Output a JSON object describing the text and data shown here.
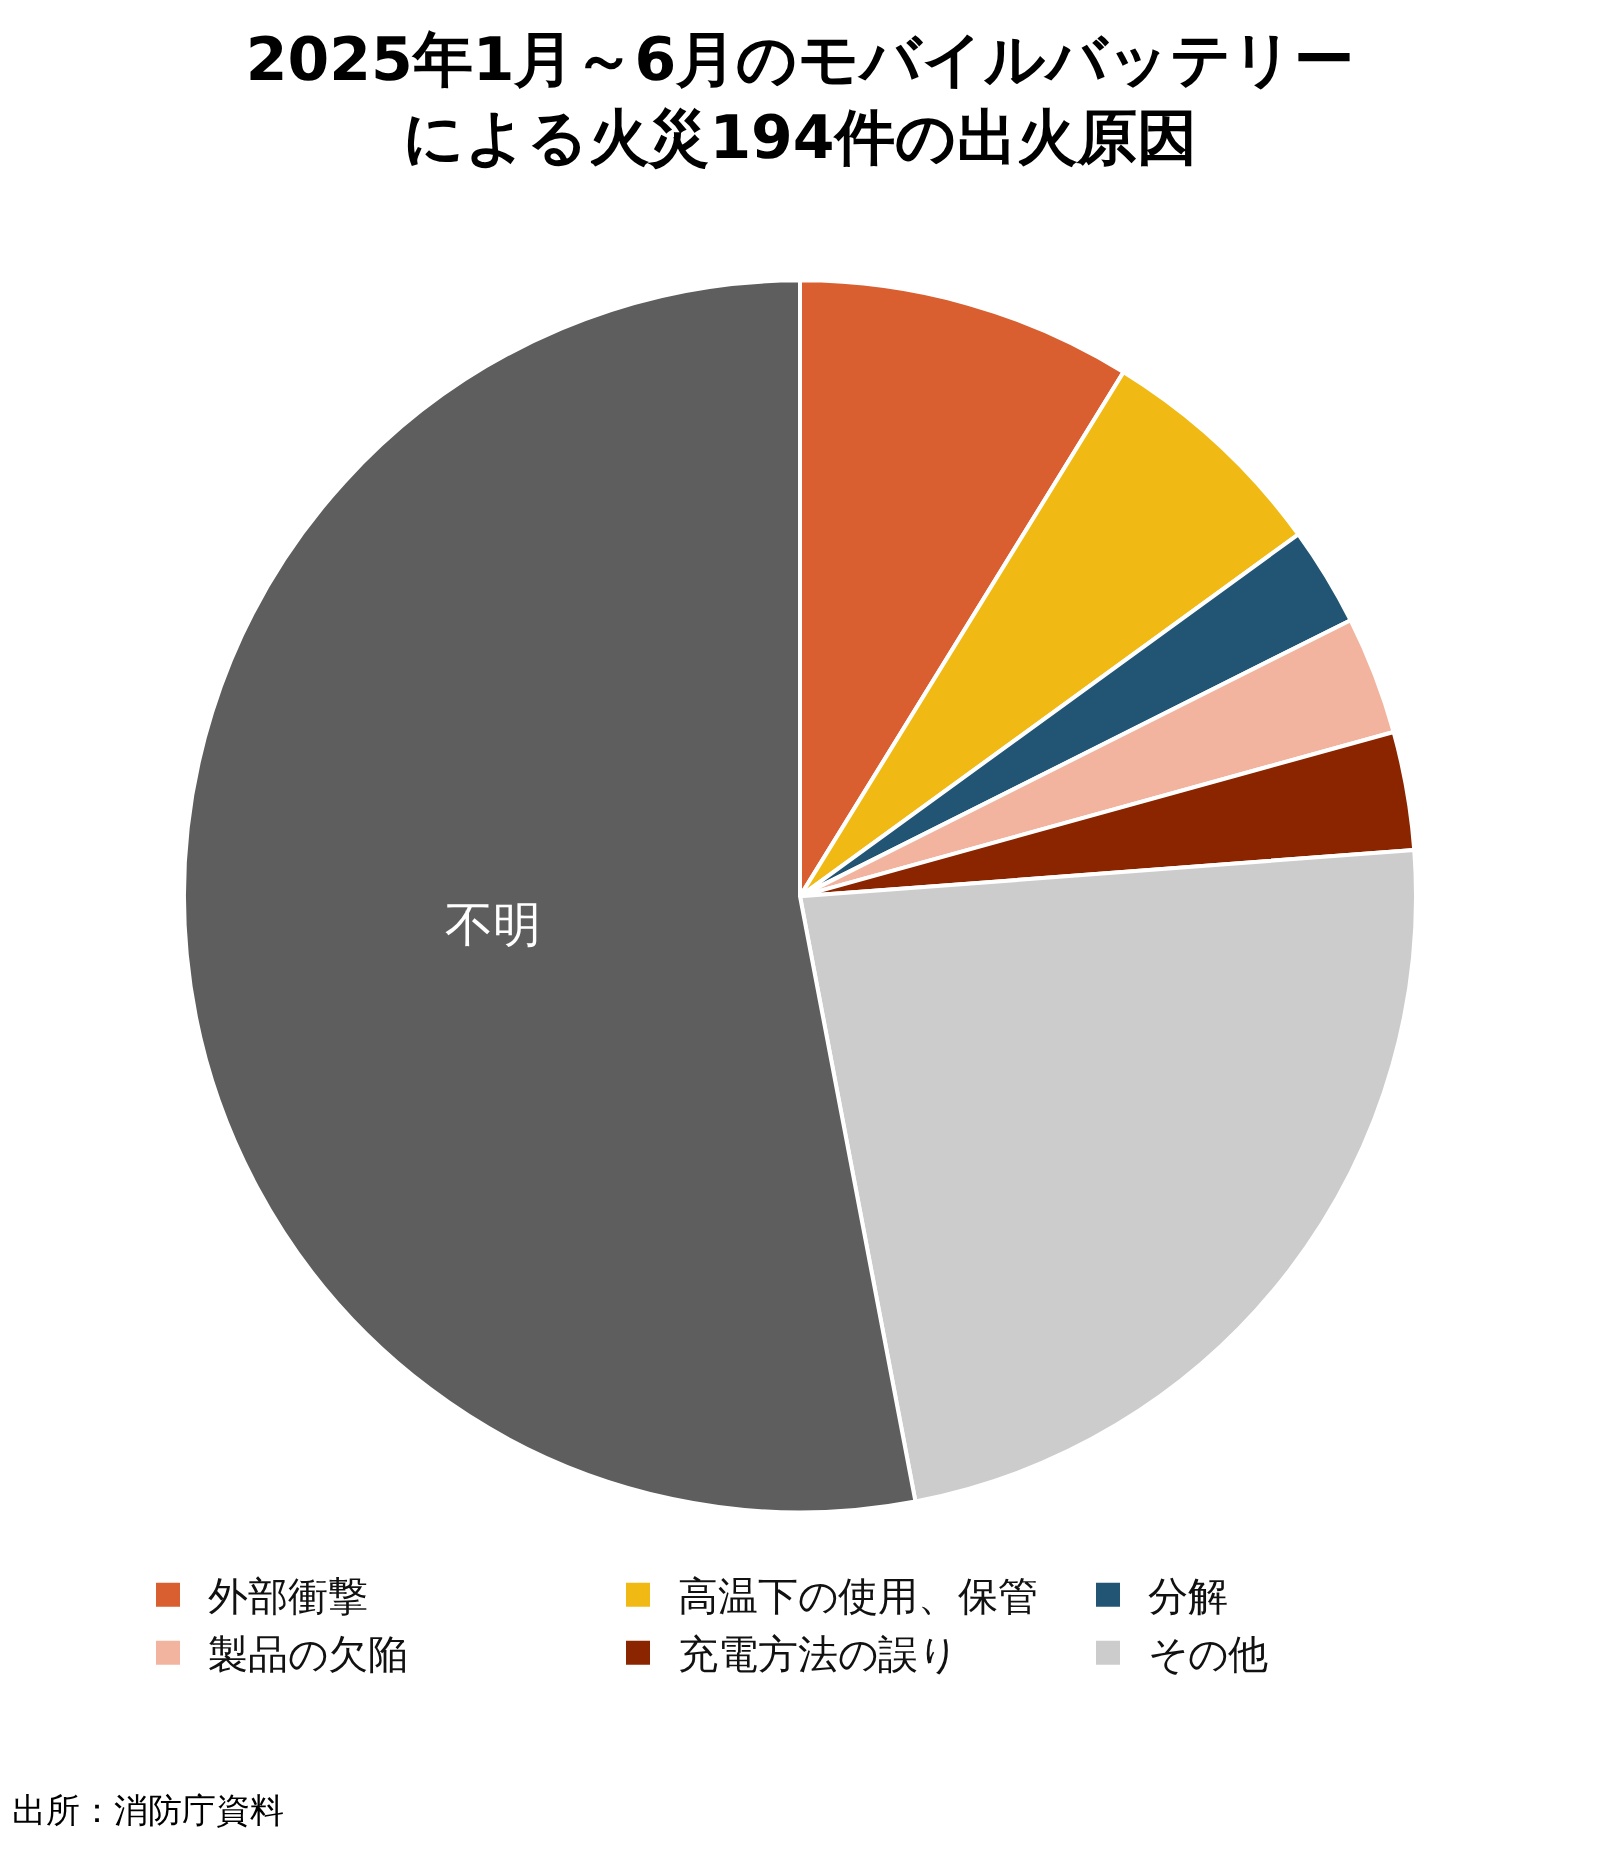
{
  "chart_data": {
    "type": "pie",
    "title": "2025年1月～6月のモバイルバッテリーによる火災194件の出火原因",
    "categories": [
      "外部衝撃",
      "高温下の使用、保管",
      "分解",
      "製品の欠陥",
      "充電方法の誤り",
      "その他",
      "不明"
    ],
    "values": [
      8.8,
      6.2,
      2.6,
      3.1,
      3.1,
      23.2,
      53.0
    ],
    "colors": [
      "#d95f30",
      "#f0b914",
      "#225473",
      "#f2b49e",
      "#8b2500",
      "#cccccc",
      "#5e5e5e"
    ],
    "legend": "bottom",
    "annotations": [
      "出所：消防庁資料"
    ]
  }
}
